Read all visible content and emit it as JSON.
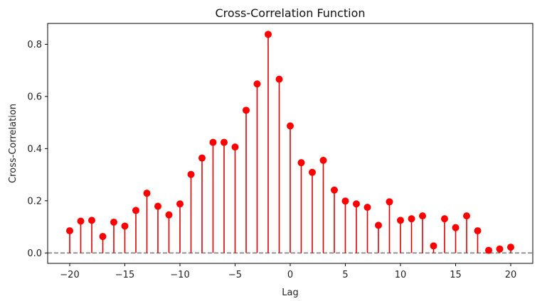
{
  "chart_data": {
    "type": "stem",
    "title": "Cross-Correlation Function",
    "xlabel": "Lag",
    "ylabel": "Cross-Correlation",
    "x": [
      -20,
      -19,
      -18,
      -17,
      -16,
      -15,
      -14,
      -13,
      -12,
      -11,
      -10,
      -9,
      -8,
      -7,
      -6,
      -5,
      -4,
      -3,
      -2,
      -1,
      0,
      1,
      2,
      3,
      4,
      5,
      6,
      7,
      8,
      9,
      10,
      11,
      12,
      13,
      14,
      15,
      16,
      17,
      18,
      19,
      20
    ],
    "values": [
      0.085,
      0.122,
      0.125,
      0.063,
      0.118,
      0.103,
      0.163,
      0.229,
      0.179,
      0.146,
      0.188,
      0.301,
      0.364,
      0.424,
      0.424,
      0.406,
      0.547,
      0.648,
      0.838,
      0.666,
      0.487,
      0.346,
      0.309,
      0.355,
      0.241,
      0.199,
      0.188,
      0.175,
      0.106,
      0.196,
      0.125,
      0.131,
      0.142,
      0.027,
      0.131,
      0.097,
      0.142,
      0.085,
      0.01,
      0.015,
      0.022
    ],
    "xlim": [
      -22,
      22
    ],
    "ylim": [
      -0.04,
      0.88
    ],
    "xticks": [
      -20,
      -15,
      -10,
      -5,
      0,
      5,
      10,
      15,
      20
    ],
    "yticks": [
      0.0,
      0.2,
      0.4,
      0.6,
      0.8
    ],
    "xtick_labels": [
      "−20",
      "−15",
      "−10",
      "−5",
      "0",
      "5",
      "10",
      "15",
      "20"
    ],
    "ytick_labels": [
      "0.0",
      "0.2",
      "0.4",
      "0.6",
      "0.8"
    ],
    "baseline": 0,
    "grid": false,
    "colors": {
      "stem": "#e00000",
      "marker": "#ff0000",
      "baseline": "#808080",
      "axis": "#000000"
    }
  }
}
